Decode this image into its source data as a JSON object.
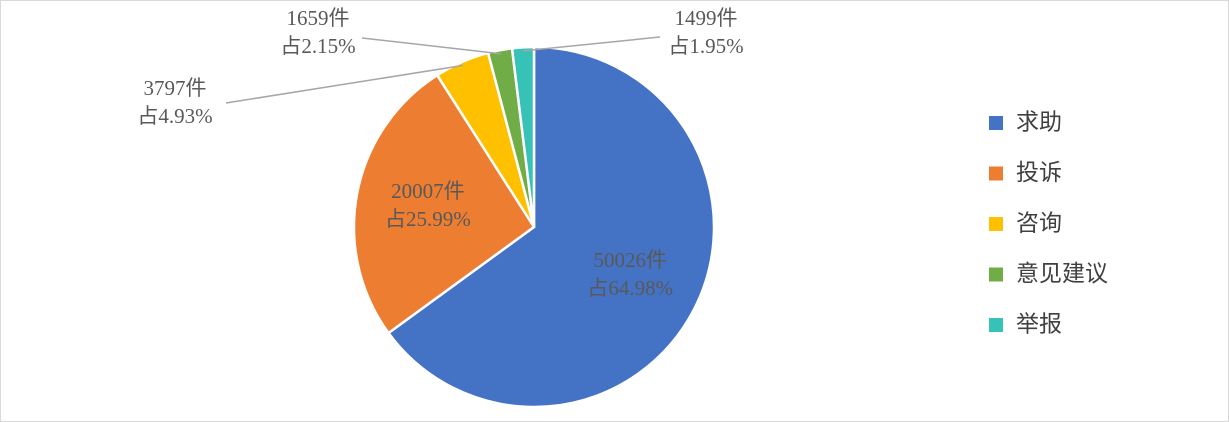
{
  "chart_data": {
    "type": "pie",
    "categories": [
      "求助",
      "投诉",
      "咨询",
      "意见建议",
      "举报"
    ],
    "values": [
      50026,
      20007,
      3797,
      1659,
      1499
    ],
    "value_labels": [
      "50026件",
      "20007件",
      "3797件",
      "1659件",
      "1499件"
    ],
    "share_labels": [
      "占64.98%",
      "占25.99%",
      "占4.93%",
      "占2.15%",
      "占1.95%"
    ],
    "colors": [
      "#4472c4",
      "#ed7d31",
      "#ffc000",
      "#70ad47",
      "#36c2b6"
    ],
    "legend": "right"
  }
}
